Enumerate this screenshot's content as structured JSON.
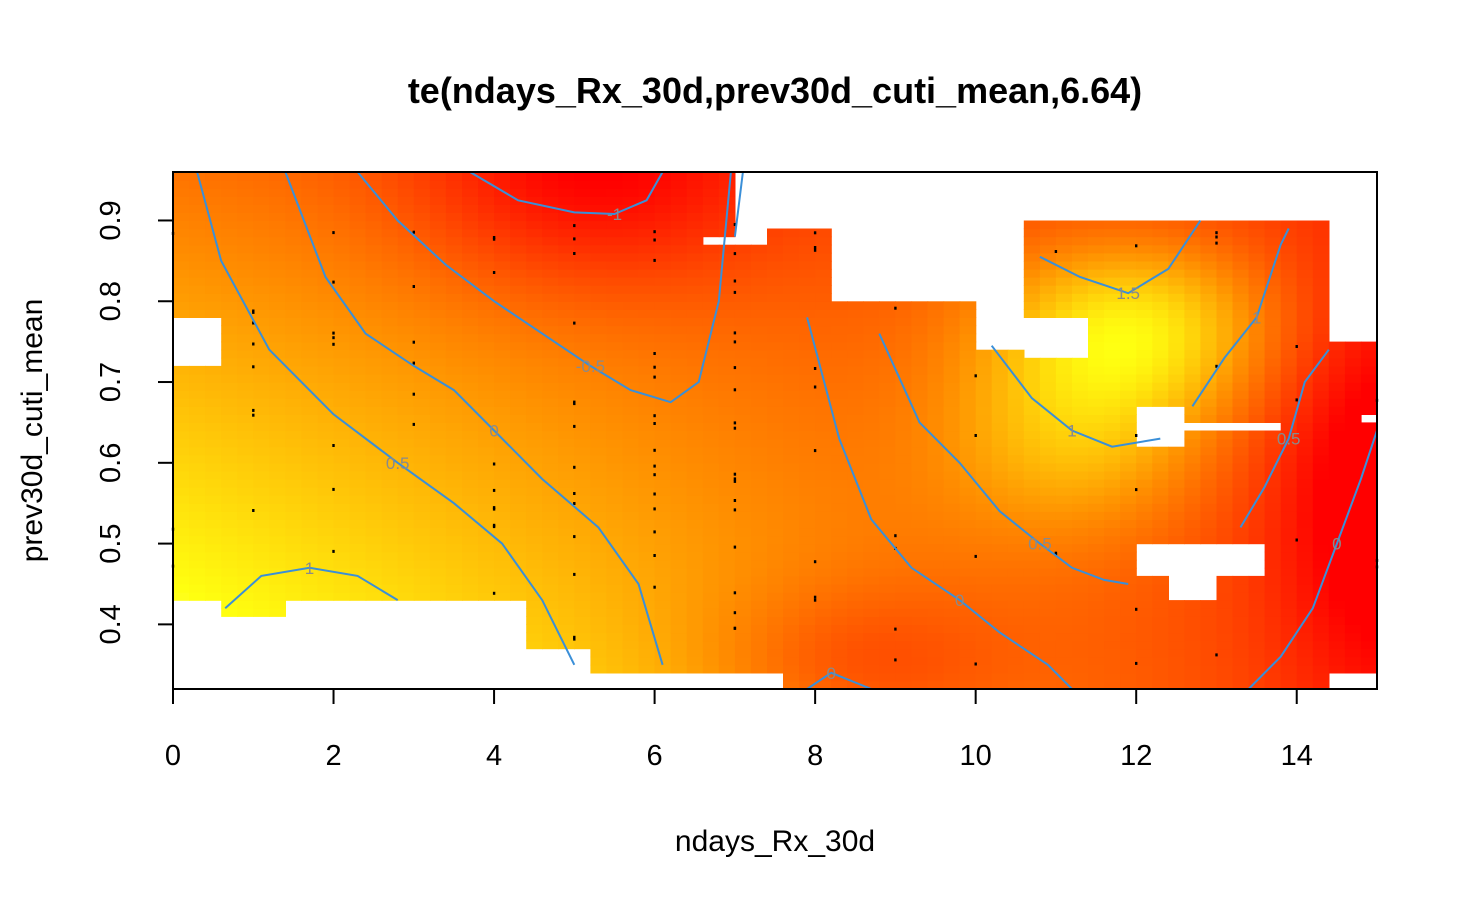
{
  "chart_data": {
    "type": "heatmap",
    "title": "te(ndays_Rx_30d,prev30d_cuti_mean,6.64)",
    "xlabel": "ndays_Rx_30d",
    "ylabel": "prev30d_cuti_mean",
    "xlim": [
      0,
      15
    ],
    "ylim": [
      0.32,
      0.96
    ],
    "xticks": [
      0,
      2,
      4,
      6,
      8,
      10,
      12,
      14
    ],
    "yticks": [
      0.4,
      0.5,
      0.6,
      0.7,
      0.8,
      0.9
    ],
    "color_scale": "heat (red = low, yellow to white = high)",
    "colors": {
      "low": "#ff0000",
      "mid": "#ff8c00",
      "high": "#ffff10",
      "top": "#ffffe6",
      "contour": "#3a8fd8",
      "contour_label": "#8a8a8a",
      "rug": "#000000"
    },
    "contours": [
      {
        "level": "-1",
        "label": "-1",
        "points": [
          [
            3.7,
            0.96
          ],
          [
            4.3,
            0.925
          ],
          [
            5.0,
            0.91
          ],
          [
            5.5,
            0.908
          ],
          [
            5.9,
            0.925
          ],
          [
            6.1,
            0.96
          ]
        ]
      },
      {
        "level": "-0.5",
        "label": "-0.5",
        "points": [
          [
            2.3,
            0.96
          ],
          [
            2.8,
            0.9
          ],
          [
            3.4,
            0.845
          ],
          [
            4.0,
            0.8
          ],
          [
            4.6,
            0.76
          ],
          [
            5.2,
            0.72
          ],
          [
            5.7,
            0.69
          ],
          [
            6.2,
            0.675
          ],
          [
            6.55,
            0.7
          ],
          [
            6.8,
            0.8
          ],
          [
            6.95,
            0.96
          ]
        ]
      },
      {
        "level": "-0.5",
        "label": "",
        "points": [
          [
            7.0,
            0.88
          ],
          [
            7.1,
            0.96
          ]
        ]
      },
      {
        "level": "0",
        "label": "0",
        "points": [
          [
            1.4,
            0.96
          ],
          [
            1.9,
            0.83
          ],
          [
            2.4,
            0.76
          ],
          [
            3.0,
            0.72
          ],
          [
            3.5,
            0.69
          ],
          [
            4.0,
            0.64
          ],
          [
            4.6,
            0.58
          ],
          [
            5.3,
            0.52
          ],
          [
            5.8,
            0.45
          ],
          [
            6.1,
            0.35
          ]
        ]
      },
      {
        "level": "0.5",
        "label": "0.5",
        "points": [
          [
            0.3,
            0.96
          ],
          [
            0.6,
            0.85
          ],
          [
            1.2,
            0.74
          ],
          [
            2.0,
            0.66
          ],
          [
            2.8,
            0.6
          ],
          [
            3.5,
            0.55
          ],
          [
            4.1,
            0.5
          ],
          [
            4.6,
            0.43
          ],
          [
            5.0,
            0.35
          ]
        ]
      },
      {
        "level": "1",
        "label": "1",
        "points": [
          [
            0.65,
            0.42
          ],
          [
            1.1,
            0.46
          ],
          [
            1.7,
            0.47
          ],
          [
            2.3,
            0.46
          ],
          [
            2.8,
            0.43
          ]
        ]
      },
      {
        "level": "0",
        "label": "0",
        "points": [
          [
            7.9,
            0.32
          ],
          [
            8.2,
            0.34
          ],
          [
            8.7,
            0.32
          ]
        ]
      },
      {
        "level": "0",
        "label": "0",
        "points": [
          [
            7.9,
            0.78
          ],
          [
            8.3,
            0.63
          ],
          [
            8.7,
            0.53
          ],
          [
            9.2,
            0.47
          ],
          [
            9.8,
            0.43
          ],
          [
            10.3,
            0.39
          ],
          [
            10.9,
            0.35
          ],
          [
            11.2,
            0.32
          ]
        ]
      },
      {
        "level": "0.5",
        "label": "0.5",
        "points": [
          [
            8.8,
            0.76
          ],
          [
            9.3,
            0.65
          ],
          [
            9.8,
            0.6
          ],
          [
            10.3,
            0.54
          ],
          [
            10.8,
            0.5
          ],
          [
            11.2,
            0.47
          ],
          [
            11.6,
            0.455
          ],
          [
            11.9,
            0.45
          ]
        ]
      },
      {
        "level": "1",
        "label": "1",
        "points": [
          [
            10.2,
            0.745
          ],
          [
            10.7,
            0.68
          ],
          [
            11.2,
            0.64
          ],
          [
            11.7,
            0.62
          ],
          [
            12.3,
            0.63
          ]
        ]
      },
      {
        "level": "1",
        "label": "1",
        "points": [
          [
            12.7,
            0.67
          ],
          [
            13.1,
            0.73
          ],
          [
            13.5,
            0.78
          ],
          [
            13.8,
            0.87
          ],
          [
            13.9,
            0.89
          ]
        ]
      },
      {
        "level": "1.5",
        "label": "1.5",
        "points": [
          [
            10.8,
            0.855
          ],
          [
            11.3,
            0.83
          ],
          [
            11.9,
            0.81
          ],
          [
            12.4,
            0.84
          ],
          [
            12.8,
            0.9
          ]
        ]
      },
      {
        "level": "0.5",
        "label": "0.5",
        "points": [
          [
            13.3,
            0.52
          ],
          [
            13.6,
            0.57
          ],
          [
            13.9,
            0.63
          ],
          [
            14.1,
            0.7
          ],
          [
            14.4,
            0.74
          ]
        ]
      },
      {
        "level": "0",
        "label": "0",
        "points": [
          [
            13.4,
            0.32
          ],
          [
            13.8,
            0.36
          ],
          [
            14.2,
            0.42
          ],
          [
            14.5,
            0.5
          ],
          [
            14.8,
            0.58
          ],
          [
            15.0,
            0.64
          ]
        ]
      }
    ]
  }
}
